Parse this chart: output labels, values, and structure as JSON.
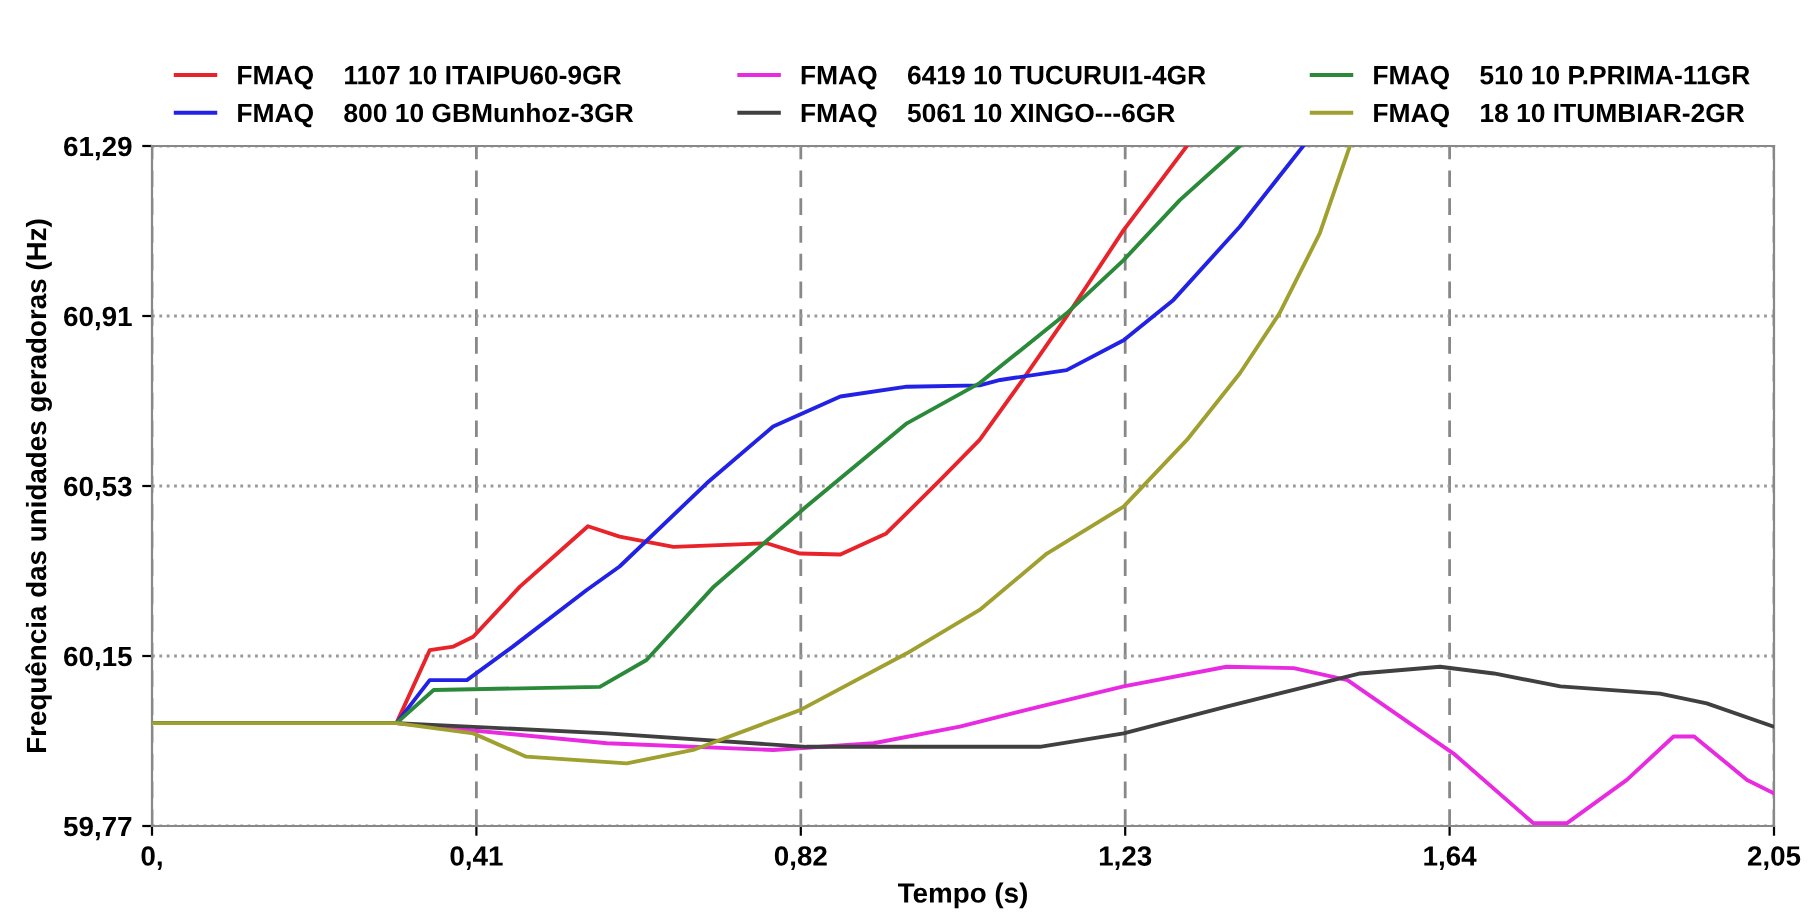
{
  "chart_data": {
    "type": "line",
    "xlabel": "Tempo (s)",
    "ylabel": "Frequência das unidades geradoras (Hz)",
    "xlim": [
      0,
      2.05
    ],
    "ylim": [
      59.77,
      61.29
    ],
    "xticks": [
      {
        "value": 0,
        "label": "0,"
      },
      {
        "value": 0.41,
        "label": "0,41"
      },
      {
        "value": 0.82,
        "label": "0,82"
      },
      {
        "value": 1.23,
        "label": "1,23"
      },
      {
        "value": 1.64,
        "label": "1,64"
      },
      {
        "value": 2.05,
        "label": "2,05"
      }
    ],
    "yticks": [
      {
        "value": 59.77,
        "label": "59,77"
      },
      {
        "value": 60.15,
        "label": "60,15"
      },
      {
        "value": 60.53,
        "label": "60,53"
      },
      {
        "value": 60.91,
        "label": "60,91"
      },
      {
        "value": 61.29,
        "label": "61,29"
      }
    ],
    "grid": true,
    "legend": "top",
    "line_style": "solid",
    "marker": "none",
    "series": [
      {
        "name": "FMAQ    1107 10 ITAIPU60-9GR",
        "color": "#e8232a",
        "x": [
          0,
          0.309,
          0.351,
          0.381,
          0.406,
          0.465,
          0.551,
          0.591,
          0.659,
          0.777,
          0.819,
          0.87,
          0.928,
          0.996,
          1.046,
          1.097,
          1.156,
          1.228,
          1.308
        ],
        "values": [
          60.0,
          60.0,
          60.163,
          60.171,
          60.193,
          60.305,
          60.44,
          60.417,
          60.394,
          60.402,
          60.379,
          60.377,
          60.424,
          60.543,
          60.633,
          60.759,
          60.909,
          61.102,
          61.29
        ]
      },
      {
        "name": "FMAQ    800 10 GBMunhoz-3GR",
        "color": "#2222e6",
        "x": [
          0,
          0.309,
          0.351,
          0.398,
          0.456,
          0.549,
          0.591,
          0.701,
          0.785,
          0.87,
          0.954,
          1.046,
          1.072,
          1.156,
          1.228,
          1.291,
          1.375,
          1.455
        ],
        "values": [
          60.0,
          60.0,
          60.096,
          60.096,
          60.171,
          60.297,
          60.35,
          60.536,
          60.663,
          60.73,
          60.752,
          60.755,
          60.767,
          60.789,
          60.856,
          60.946,
          61.11,
          61.29
        ]
      },
      {
        "name": "FMAQ    6419 10 TUCURUI1-4GR",
        "color": "#e82ae0",
        "x": [
          0,
          0.309,
          0.575,
          0.785,
          0.912,
          1.021,
          1.122,
          1.228,
          1.358,
          1.443,
          1.511,
          1.645,
          1.746,
          1.788,
          1.864,
          1.923,
          1.949,
          2.016,
          2.05
        ],
        "values": [
          60.0,
          60.0,
          59.955,
          59.94,
          59.955,
          59.992,
          60.037,
          60.082,
          60.126,
          60.123,
          60.096,
          59.932,
          59.776,
          59.776,
          59.873,
          59.97,
          59.97,
          59.873,
          59.843
        ]
      },
      {
        "name": "FMAQ    5061 10 XINGO---6GR",
        "color": "#404040",
        "x": [
          0,
          0.309,
          0.575,
          0.827,
          1.021,
          1.122,
          1.228,
          1.358,
          1.527,
          1.628,
          1.696,
          1.78,
          1.906,
          1.965,
          2.05
        ],
        "values": [
          60.0,
          60.0,
          59.977,
          59.947,
          59.947,
          59.947,
          59.977,
          60.037,
          60.111,
          60.126,
          60.111,
          60.082,
          60.066,
          60.044,
          59.992
        ]
      },
      {
        "name": "FMAQ    510 10 P.PRIMA-11GR",
        "color": "#2a8a3a",
        "x": [
          0,
          0.309,
          0.356,
          0.566,
          0.625,
          0.71,
          0.827,
          0.954,
          1.046,
          1.156,
          1.228,
          1.299,
          1.375
        ],
        "values": [
          60.0,
          60.0,
          60.074,
          60.081,
          60.141,
          60.305,
          60.484,
          60.67,
          60.76,
          60.916,
          61.035,
          61.169,
          61.29
        ]
      },
      {
        "name": "FMAQ    18 10 ITUMBIAR-2GR",
        "color": "#a0a030",
        "x": [
          0,
          0.309,
          0.406,
          0.473,
          0.6,
          0.684,
          0.819,
          0.954,
          1.046,
          1.131,
          1.228,
          1.308,
          1.375,
          1.425,
          1.476,
          1.514
        ],
        "values": [
          60.0,
          60.0,
          59.977,
          59.925,
          59.91,
          59.94,
          60.029,
          60.156,
          60.253,
          60.379,
          60.484,
          60.633,
          60.782,
          60.916,
          61.095,
          61.29
        ]
      }
    ]
  }
}
